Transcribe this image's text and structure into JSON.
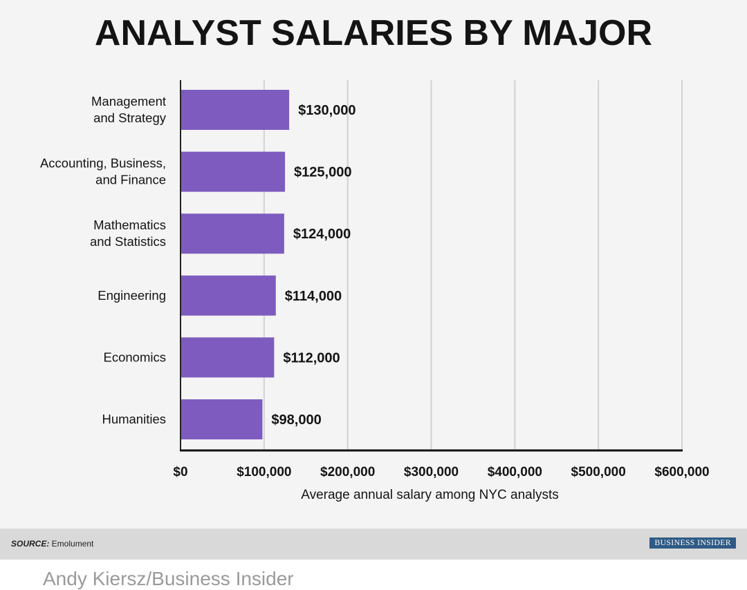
{
  "chart_data": {
    "type": "bar",
    "orientation": "horizontal",
    "title": "ANALYST SALARIES BY MAJOR",
    "categories": [
      [
        "Management",
        "and Strategy"
      ],
      [
        "Accounting, Business,",
        "and Finance"
      ],
      [
        "Mathematics",
        "and Statistics"
      ],
      [
        "Engineering"
      ],
      [
        "Economics"
      ],
      [
        "Humanities"
      ]
    ],
    "values": [
      130000,
      125000,
      124000,
      114000,
      112000,
      98000
    ],
    "value_labels": [
      "$130,000",
      "$125,000",
      "$124,000",
      "$114,000",
      "$112,000",
      "$98,000"
    ],
    "xlim": [
      0,
      600000
    ],
    "xticks": [
      0,
      100000,
      200000,
      300000,
      400000,
      500000,
      600000
    ],
    "xtick_labels": [
      "$0",
      "$100,000",
      "$200,000",
      "$300,000",
      "$400,000",
      "$500,000",
      "$600,000"
    ],
    "xlabel": "Average annual salary among NYC analysts",
    "ylabel": "",
    "grid": true,
    "bar_color": "#7e5cbf"
  },
  "footer": {
    "source_label": "SOURCE:",
    "source_value": " Emolument",
    "brand": "BUSINESS INSIDER"
  },
  "caption": "Andy Kiersz/Business Insider"
}
